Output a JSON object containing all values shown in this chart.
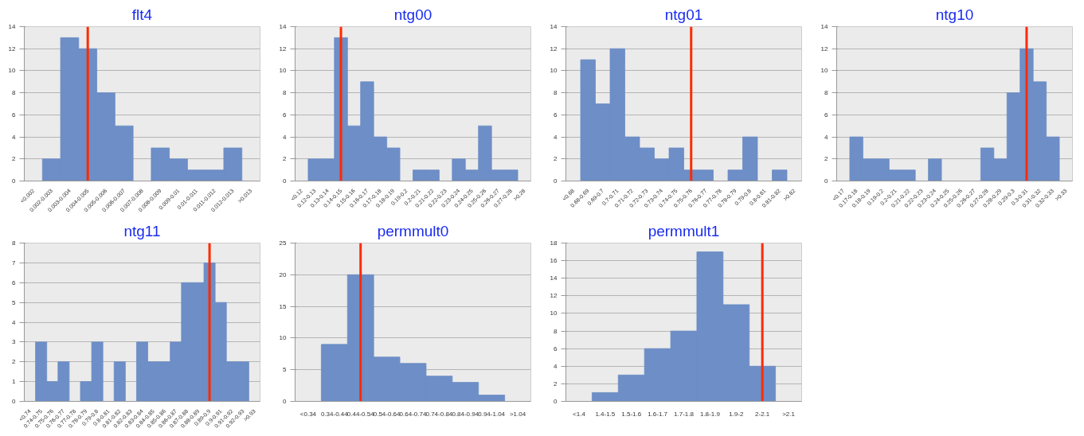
{
  "chart_data": [
    {
      "type": "bar",
      "title": "flt4",
      "color": "#6d8ec6",
      "grid": "y",
      "ylim": [
        0,
        14
      ],
      "yticks": [
        0,
        2,
        4,
        6,
        8,
        10,
        12,
        14
      ],
      "categories": [
        "<0.002",
        "0.002-0.003",
        "0.003-0.004",
        "0.004-0.005",
        "0.005-0.006",
        "0.006-0.007",
        "0.007-0.008",
        "0.008-0.009",
        "0.009-0.01",
        "0.01-0.011",
        "0.011-0.012",
        "0.012-0.013",
        ">0.013"
      ],
      "values": [
        0,
        2,
        13,
        12,
        8,
        5,
        0,
        3,
        2,
        1,
        1,
        3,
        0
      ],
      "ref_lines": [
        {
          "axis": "x",
          "value": "0.004-0.005",
          "color": "#ff2a00"
        }
      ]
    },
    {
      "type": "bar",
      "title": "ntg00",
      "color": "#6d8ec6",
      "grid": "y",
      "ylim": [
        0,
        14
      ],
      "yticks": [
        0,
        2,
        4,
        6,
        8,
        10,
        12,
        14
      ],
      "categories": [
        "<0.12",
        "0.12-0.13",
        "0.13-0.14",
        "0.14-0.15",
        "0.15-0.16",
        "0.16-0.17",
        "0.17-0.18",
        "0.18-0.19",
        "0.19-0.2",
        "0.2-0.21",
        "0.21-0.22",
        "0.22-0.23",
        "0.23-0.24",
        "0.24-0.25",
        "0.25-0.26",
        "0.26-0.27",
        "0.27-0.28",
        ">0.28"
      ],
      "values": [
        0,
        2,
        2,
        13,
        5,
        9,
        4,
        3,
        0,
        1,
        1,
        0,
        2,
        1,
        5,
        1,
        1,
        0
      ],
      "ref_lines": [
        {
          "axis": "x",
          "value": "0.14-0.15",
          "color": "#ff2a00"
        }
      ]
    },
    {
      "type": "bar",
      "title": "ntg01",
      "color": "#6d8ec6",
      "grid": "y",
      "ylim": [
        0,
        14
      ],
      "yticks": [
        0,
        2,
        4,
        6,
        8,
        10,
        12,
        14
      ],
      "categories": [
        "<0.68",
        "0.68-0.69",
        "0.69-0.7",
        "0.7-0.71",
        "0.71-0.72",
        "0.72-0.73",
        "0.73-0.74",
        "0.74-0.75",
        "0.75-0.76",
        "0.76-0.77",
        "0.77-0.78",
        "0.78-0.79",
        "0.79-0.8",
        "0.8-0.81",
        "0.81-0.82",
        ">0.82"
      ],
      "values": [
        0,
        11,
        7,
        12,
        4,
        3,
        2,
        3,
        1,
        1,
        0,
        1,
        4,
        0,
        1,
        0
      ],
      "ref_lines": [
        {
          "axis": "x",
          "value": "0.75-0.76",
          "color": "#ff2a00"
        }
      ]
    },
    {
      "type": "bar",
      "title": "ntg10",
      "color": "#6d8ec6",
      "grid": "y",
      "ylim": [
        0,
        14
      ],
      "yticks": [
        0,
        2,
        4,
        6,
        8,
        10,
        12,
        14
      ],
      "categories": [
        "<0.17",
        "0.17-0.18",
        "0.18-0.19",
        "0.19-0.2",
        "0.2-0.21",
        "0.21-0.22",
        "0.22-0.23",
        "0.23-0.24",
        "0.24-0.25",
        "0.25-0.26",
        "0.26-0.27",
        "0.27-0.28",
        "0.28-0.29",
        "0.29-0.3",
        "0.3-0.31",
        "0.31-0.32",
        "0.32-0.33",
        ">0.33"
      ],
      "values": [
        0,
        4,
        2,
        2,
        1,
        1,
        0,
        2,
        0,
        0,
        0,
        3,
        2,
        8,
        12,
        9,
        4,
        0
      ],
      "ref_lines": [
        {
          "axis": "x",
          "value": "0.3-0.31",
          "color": "#ff2a00"
        }
      ]
    },
    {
      "type": "bar",
      "title": "ntg11",
      "color": "#6d8ec6",
      "grid": "y",
      "ylim": [
        0,
        8
      ],
      "yticks": [
        0,
        1,
        2,
        3,
        4,
        5,
        6,
        7,
        8
      ],
      "categories": [
        "<0.74",
        "0.74-0.75",
        "0.75-0.76",
        "0.76-0.77",
        "0.77-0.78",
        "0.78-0.79",
        "0.79-0.8",
        "0.8-0.81",
        "0.81-0.82",
        "0.82-0.83",
        "0.83-0.84",
        "0.84-0.85",
        "0.85-0.86",
        "0.86-0.87",
        "0.87-0.88",
        "0.88-0.89",
        "0.89-0.9",
        "0.9-0.91",
        "0.91-0.92",
        "0.92-0.93",
        ">0.93"
      ],
      "values": [
        0,
        3,
        1,
        2,
        0,
        1,
        3,
        0,
        2,
        0,
        3,
        2,
        2,
        3,
        6,
        6,
        7,
        5,
        2,
        2,
        0
      ],
      "ref_lines": [
        {
          "axis": "x",
          "value": "0.89-0.9",
          "color": "#ff2a00"
        }
      ]
    },
    {
      "type": "bar",
      "title": "permmult0",
      "color": "#6d8ec6",
      "grid": "y",
      "ylim": [
        0,
        25
      ],
      "yticks": [
        0,
        5,
        10,
        15,
        20,
        25
      ],
      "categories": [
        "<0.34",
        "0.34-0.44",
        "0.44-0.54",
        "0.54-0.64",
        "0.64-0.74",
        "0.74-0.84",
        "0.84-0.94",
        "0.94-1.04",
        ">1.04"
      ],
      "values": [
        0,
        9,
        20,
        7,
        6,
        4,
        3,
        1,
        0
      ],
      "ref_lines": [
        {
          "axis": "x",
          "value": "0.44-0.54",
          "color": "#ff2a00"
        }
      ]
    },
    {
      "type": "bar",
      "title": "permmult1",
      "color": "#6d8ec6",
      "grid": "y",
      "ylim": [
        0,
        18
      ],
      "yticks": [
        0,
        2,
        4,
        6,
        8,
        10,
        12,
        14,
        16,
        18
      ],
      "categories": [
        "<1.4",
        "1.4-1.5",
        "1.5-1.6",
        "1.6-1.7",
        "1.7-1.8",
        "1.8-1.9",
        "1.9-2",
        "2-2.1",
        ">2.1"
      ],
      "values": [
        0,
        1,
        3,
        6,
        8,
        17,
        11,
        4,
        0
      ],
      "ref_lines": [
        {
          "axis": "x",
          "value": "2-2.1",
          "color": "#ff2a00"
        }
      ]
    }
  ]
}
